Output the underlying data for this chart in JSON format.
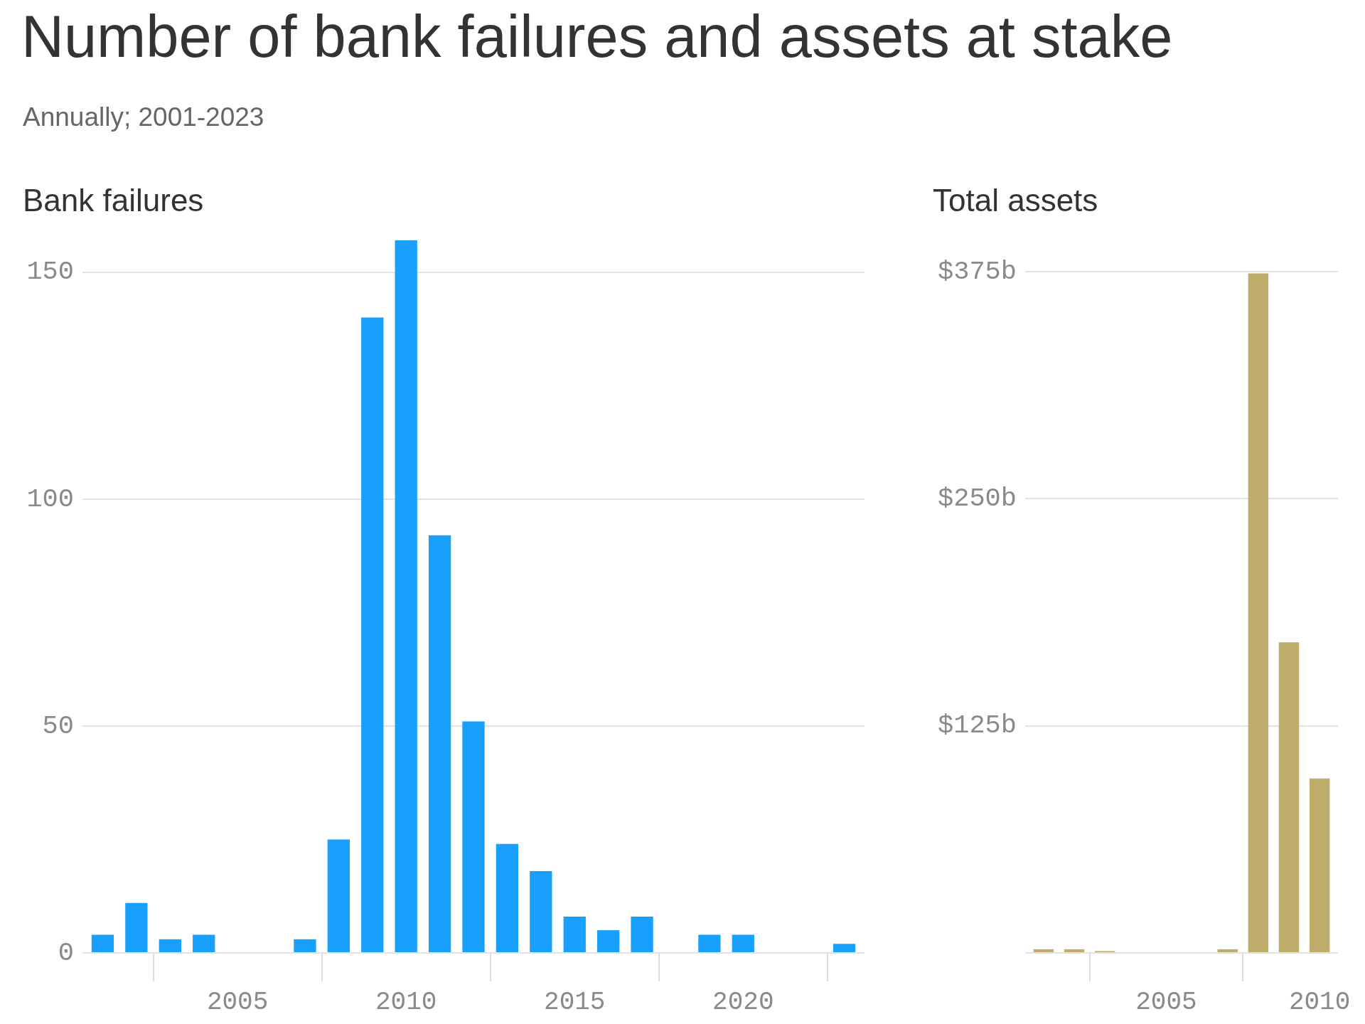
{
  "chart_data": [
    {
      "type": "bar",
      "title": "Number of bank failures and assets at stake",
      "subtitle": "Annually; 2001-2023",
      "ylabel": "Bank failures",
      "x": [
        2001,
        2002,
        2003,
        2004,
        2005,
        2006,
        2007,
        2008,
        2009,
        2010,
        2011,
        2012,
        2013,
        2014,
        2015,
        2016,
        2017,
        2018,
        2019,
        2020,
        2021,
        2022,
        2023
      ],
      "values": [
        4,
        11,
        3,
        4,
        0,
        0,
        3,
        25,
        140,
        157,
        92,
        51,
        24,
        18,
        8,
        5,
        8,
        0,
        4,
        4,
        0,
        0,
        2
      ],
      "color": "#18a0fc",
      "xlim": [
        2000.4,
        2023.6
      ],
      "xticks": [
        2005,
        2010,
        2015,
        2020
      ],
      "ylim": [
        0,
        157
      ],
      "yticks": [
        0,
        50,
        100,
        150
      ],
      "grid": "y"
    },
    {
      "type": "bar",
      "ylabel": "Total assets",
      "x": [
        2001,
        2002,
        2003,
        2004,
        2005,
        2006,
        2007,
        2008,
        2009,
        2010
      ],
      "values": [
        2,
        2,
        1,
        0,
        0,
        0,
        2,
        374,
        171,
        96
      ],
      "color": "#bfad6b",
      "xlim": [
        2000.4,
        2010.6
      ],
      "xticks": [
        2005,
        2010
      ],
      "ylim": [
        0,
        375
      ],
      "yticks": [
        {
          "value": 0,
          "label": null
        },
        {
          "value": 125,
          "label": "$125b"
        },
        {
          "value": 250,
          "label": "$250b"
        },
        {
          "value": 375,
          "label": "$375b"
        }
      ],
      "grid": "y"
    }
  ]
}
